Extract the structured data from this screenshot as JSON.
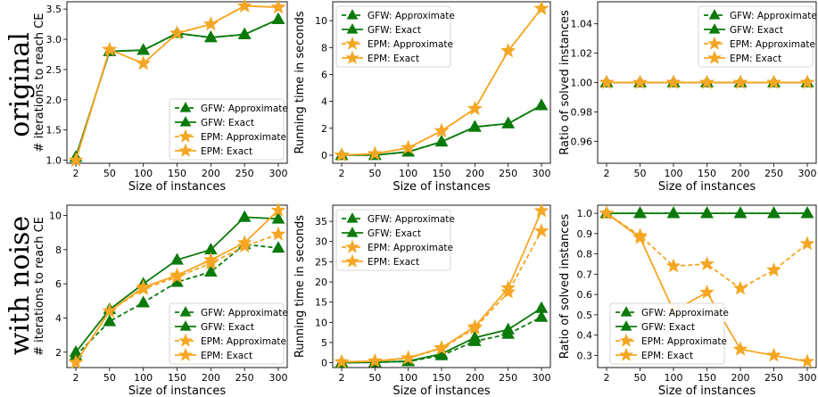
{
  "row_labels": [
    "original",
    "with noise"
  ],
  "colors": {
    "gfw": "#0b7a0b",
    "epm": "#f5a623"
  },
  "chart_data": [
    {
      "type": "line",
      "row": 0,
      "col": 0,
      "xlabel": "Size of instances",
      "ylabel": "# iterations to reach CE",
      "categories": [
        "2",
        "50",
        "100",
        "150",
        "200",
        "250",
        "300"
      ],
      "ylim": [
        0.95,
        3.62
      ],
      "yticks": [
        1.0,
        1.5,
        2.0,
        2.5,
        3.0,
        3.5
      ],
      "ytick_labels": [
        "1.0",
        "1.5",
        "2.0",
        "2.5",
        "3.0",
        "3.5"
      ],
      "legend": "lower-right",
      "series": [
        {
          "name": "GFW: Approximate",
          "values": [
            1.05,
            2.8,
            2.82,
            3.1,
            3.03,
            3.08,
            3.33
          ]
        },
        {
          "name": "GFW: Exact",
          "values": [
            1.05,
            2.8,
            2.82,
            3.1,
            3.03,
            3.08,
            3.33
          ]
        },
        {
          "name": "EPM: Approximate",
          "values": [
            1.0,
            2.83,
            2.6,
            3.1,
            3.25,
            3.55,
            3.53
          ]
        },
        {
          "name": "EPM: Exact",
          "values": [
            1.0,
            2.83,
            2.6,
            3.1,
            3.25,
            3.55,
            3.53
          ]
        }
      ]
    },
    {
      "type": "line",
      "row": 0,
      "col": 1,
      "xlabel": "Size of instances",
      "ylabel": "Running time in seconds",
      "categories": [
        "2",
        "50",
        "100",
        "150",
        "200",
        "250",
        "300"
      ],
      "ylim": [
        -0.6,
        11.4
      ],
      "yticks": [
        0,
        2,
        4,
        6,
        8,
        10
      ],
      "ytick_labels": [
        "0",
        "2",
        "4",
        "6",
        "8",
        "10"
      ],
      "legend": "top-left",
      "series": [
        {
          "name": "GFW: Approximate",
          "values": [
            0.0,
            0.0,
            0.25,
            1.0,
            2.1,
            2.35,
            3.7
          ]
        },
        {
          "name": "GFW: Exact",
          "values": [
            0.0,
            0.0,
            0.25,
            1.0,
            2.1,
            2.35,
            3.7
          ]
        },
        {
          "name": "EPM: Approximate",
          "values": [
            0.0,
            0.1,
            0.55,
            1.8,
            3.45,
            7.75,
            10.9
          ]
        },
        {
          "name": "EPM: Exact",
          "values": [
            0.0,
            0.1,
            0.55,
            1.8,
            3.45,
            7.75,
            10.9
          ]
        }
      ]
    },
    {
      "type": "line",
      "row": 0,
      "col": 2,
      "xlabel": "Size of instances",
      "ylabel": "Ratio of solved instances",
      "categories": [
        "2",
        "50",
        "100",
        "150",
        "200",
        "250",
        "300"
      ],
      "ylim": [
        0.945,
        1.055
      ],
      "yticks": [
        0.96,
        0.98,
        1.0,
        1.02,
        1.04
      ],
      "ytick_labels": [
        "0.96",
        "0.98",
        "1.00",
        "1.02",
        "1.04"
      ],
      "legend": "top-right",
      "series": [
        {
          "name": "GFW: Approximate",
          "values": [
            1,
            1,
            1,
            1,
            1,
            1,
            1
          ]
        },
        {
          "name": "GFW: Exact",
          "values": [
            1,
            1,
            1,
            1,
            1,
            1,
            1
          ]
        },
        {
          "name": "EPM: Approximate",
          "values": [
            1,
            1,
            1,
            1,
            1,
            1,
            1
          ]
        },
        {
          "name": "EPM: Exact",
          "values": [
            1,
            1,
            1,
            1,
            1,
            1,
            1
          ]
        }
      ]
    },
    {
      "type": "line",
      "row": 1,
      "col": 0,
      "xlabel": "Size of instances",
      "ylabel": "# iterations to reach CE",
      "categories": [
        "2",
        "50",
        "100",
        "150",
        "200",
        "250",
        "300"
      ],
      "ylim": [
        1.1,
        10.6
      ],
      "yticks": [
        2,
        4,
        6,
        8,
        10
      ],
      "ytick_labels": [
        "2",
        "4",
        "6",
        "8",
        "10"
      ],
      "legend": "lower-right",
      "series": [
        {
          "name": "GFW: Approximate",
          "values": [
            1.8,
            3.8,
            4.9,
            6.1,
            6.7,
            8.3,
            8.1
          ]
        },
        {
          "name": "GFW: Exact",
          "values": [
            2.0,
            4.5,
            6.0,
            7.4,
            8.0,
            9.9,
            9.8
          ]
        },
        {
          "name": "EPM: Approximate",
          "values": [
            1.4,
            4.4,
            5.7,
            6.4,
            7.2,
            8.2,
            8.9
          ]
        },
        {
          "name": "EPM: Exact",
          "values": [
            1.4,
            4.4,
            5.8,
            6.5,
            7.4,
            8.4,
            10.3
          ]
        }
      ]
    },
    {
      "type": "line",
      "row": 1,
      "col": 1,
      "xlabel": "Size of instances",
      "ylabel": "Running time in seconds",
      "categories": [
        "2",
        "50",
        "100",
        "150",
        "200",
        "250",
        "300"
      ],
      "ylim": [
        -1.2,
        39.0
      ],
      "yticks": [
        0,
        5,
        10,
        15,
        20,
        25,
        30,
        35
      ],
      "ytick_labels": [
        "0",
        "5",
        "10",
        "15",
        "20",
        "25",
        "30",
        "35"
      ],
      "legend": "top-left",
      "series": [
        {
          "name": "GFW: Approximate",
          "values": [
            0.0,
            0.1,
            0.3,
            1.8,
            5.3,
            7.1,
            11.3
          ]
        },
        {
          "name": "GFW: Exact",
          "values": [
            0.0,
            0.1,
            0.4,
            2.2,
            6.2,
            8.2,
            13.5
          ]
        },
        {
          "name": "EPM: Approximate",
          "values": [
            0.2,
            0.4,
            1.1,
            3.5,
            8.5,
            17.5,
            32.6
          ]
        },
        {
          "name": "EPM: Exact",
          "values": [
            0.2,
            0.4,
            1.2,
            3.7,
            8.9,
            18.5,
            37.6
          ]
        }
      ]
    },
    {
      "type": "line",
      "row": 1,
      "col": 2,
      "xlabel": "Size of instances",
      "ylabel": "Ratio of solved instances",
      "categories": [
        "2",
        "50",
        "100",
        "150",
        "200",
        "250",
        "300"
      ],
      "ylim": [
        0.24,
        1.04
      ],
      "yticks": [
        0.3,
        0.4,
        0.5,
        0.6,
        0.7,
        0.8,
        0.9,
        1.0
      ],
      "ytick_labels": [
        "0.3",
        "0.4",
        "0.5",
        "0.6",
        "0.7",
        "0.8",
        "0.9",
        "1.0"
      ],
      "legend": "lower-left",
      "series": [
        {
          "name": "GFW: Approximate",
          "values": [
            1,
            1,
            1,
            1,
            1,
            1,
            1
          ]
        },
        {
          "name": "GFW: Exact",
          "values": [
            1,
            1,
            1,
            1,
            1,
            1,
            1
          ]
        },
        {
          "name": "EPM: Approximate",
          "values": [
            1.0,
            0.89,
            0.74,
            0.75,
            0.63,
            0.72,
            0.85
          ]
        },
        {
          "name": "EPM: Exact",
          "values": [
            1.0,
            0.88,
            0.52,
            0.61,
            0.33,
            0.3,
            0.27
          ]
        }
      ]
    }
  ]
}
